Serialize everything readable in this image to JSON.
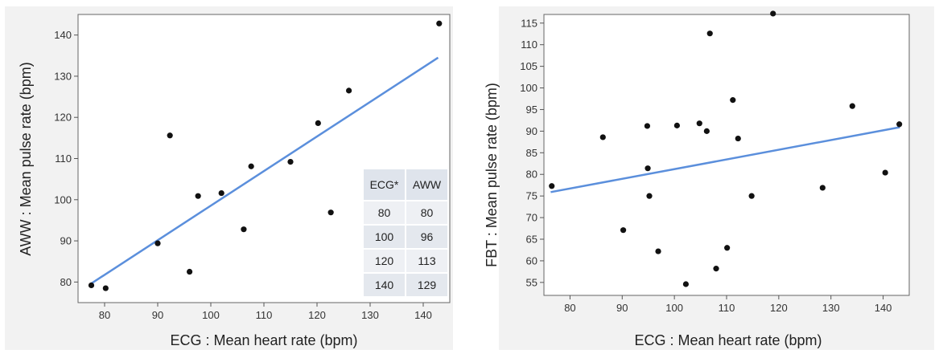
{
  "chart_data": [
    {
      "type": "scatter",
      "xlabel": "ECG : Mean heart rate (bpm)",
      "ylabel": "AWW : Mean pulse rate (bpm)",
      "xlim": [
        75,
        145
      ],
      "ylim": [
        75,
        145
      ],
      "xticks": [
        80,
        90,
        100,
        110,
        120,
        130,
        140
      ],
      "yticks": [
        80,
        90,
        100,
        110,
        120,
        130,
        140
      ],
      "points": [
        [
          77.5,
          79.2
        ],
        [
          80.2,
          78.5
        ],
        [
          90,
          89.4
        ],
        [
          92.3,
          115.6
        ],
        [
          96,
          82.5
        ],
        [
          97.6,
          100.9
        ],
        [
          102,
          101.6
        ],
        [
          106.2,
          92.8
        ],
        [
          107.6,
          108.1
        ],
        [
          115,
          109.2
        ],
        [
          120.2,
          118.6
        ],
        [
          122.6,
          96.9
        ],
        [
          126,
          126.5
        ],
        [
          143,
          142.8
        ]
      ],
      "fit_line": [
        [
          77.2,
          79.4
        ],
        [
          142.8,
          134.5
        ]
      ],
      "marker_color": "#111111",
      "line_color": "#5b8fdc",
      "table": {
        "headers": [
          "ECG*",
          "AWW"
        ],
        "rows": [
          [
            "80",
            "80"
          ],
          [
            "100",
            "96"
          ],
          [
            "120",
            "113"
          ],
          [
            "140",
            "129"
          ]
        ]
      }
    },
    {
      "type": "scatter",
      "xlabel": "ECG : Mean heart rate (bpm)",
      "ylabel": "FBT : Mean pulse rate (bpm)",
      "xlim": [
        75,
        145
      ],
      "ylim": [
        52,
        117
      ],
      "xticks": [
        80,
        90,
        100,
        110,
        120,
        130,
        140
      ],
      "yticks": [
        55,
        60,
        65,
        70,
        75,
        80,
        85,
        90,
        95,
        100,
        105,
        110,
        115
      ],
      "points": [
        [
          76.5,
          77.3
        ],
        [
          86.3,
          88.6
        ],
        [
          90.2,
          67.1
        ],
        [
          94.8,
          91.2
        ],
        [
          94.9,
          81.4
        ],
        [
          95.2,
          75.0
        ],
        [
          96.9,
          62.2
        ],
        [
          100.5,
          91.3
        ],
        [
          102.2,
          54.6
        ],
        [
          104.8,
          91.8
        ],
        [
          106.2,
          90.0
        ],
        [
          106.8,
          112.6
        ],
        [
          108,
          58.2
        ],
        [
          110.1,
          63.0
        ],
        [
          111.2,
          97.2
        ],
        [
          112.2,
          88.3
        ],
        [
          114.8,
          75.0
        ],
        [
          118.9,
          117.2
        ],
        [
          128.4,
          76.9
        ],
        [
          134.1,
          95.8
        ],
        [
          140.4,
          80.4
        ],
        [
          143.1,
          91.6
        ]
      ],
      "fit_line": [
        [
          76.3,
          75.9
        ],
        [
          143.2,
          90.9
        ]
      ],
      "marker_color": "#111111",
      "line_color": "#5b8fdc"
    }
  ]
}
